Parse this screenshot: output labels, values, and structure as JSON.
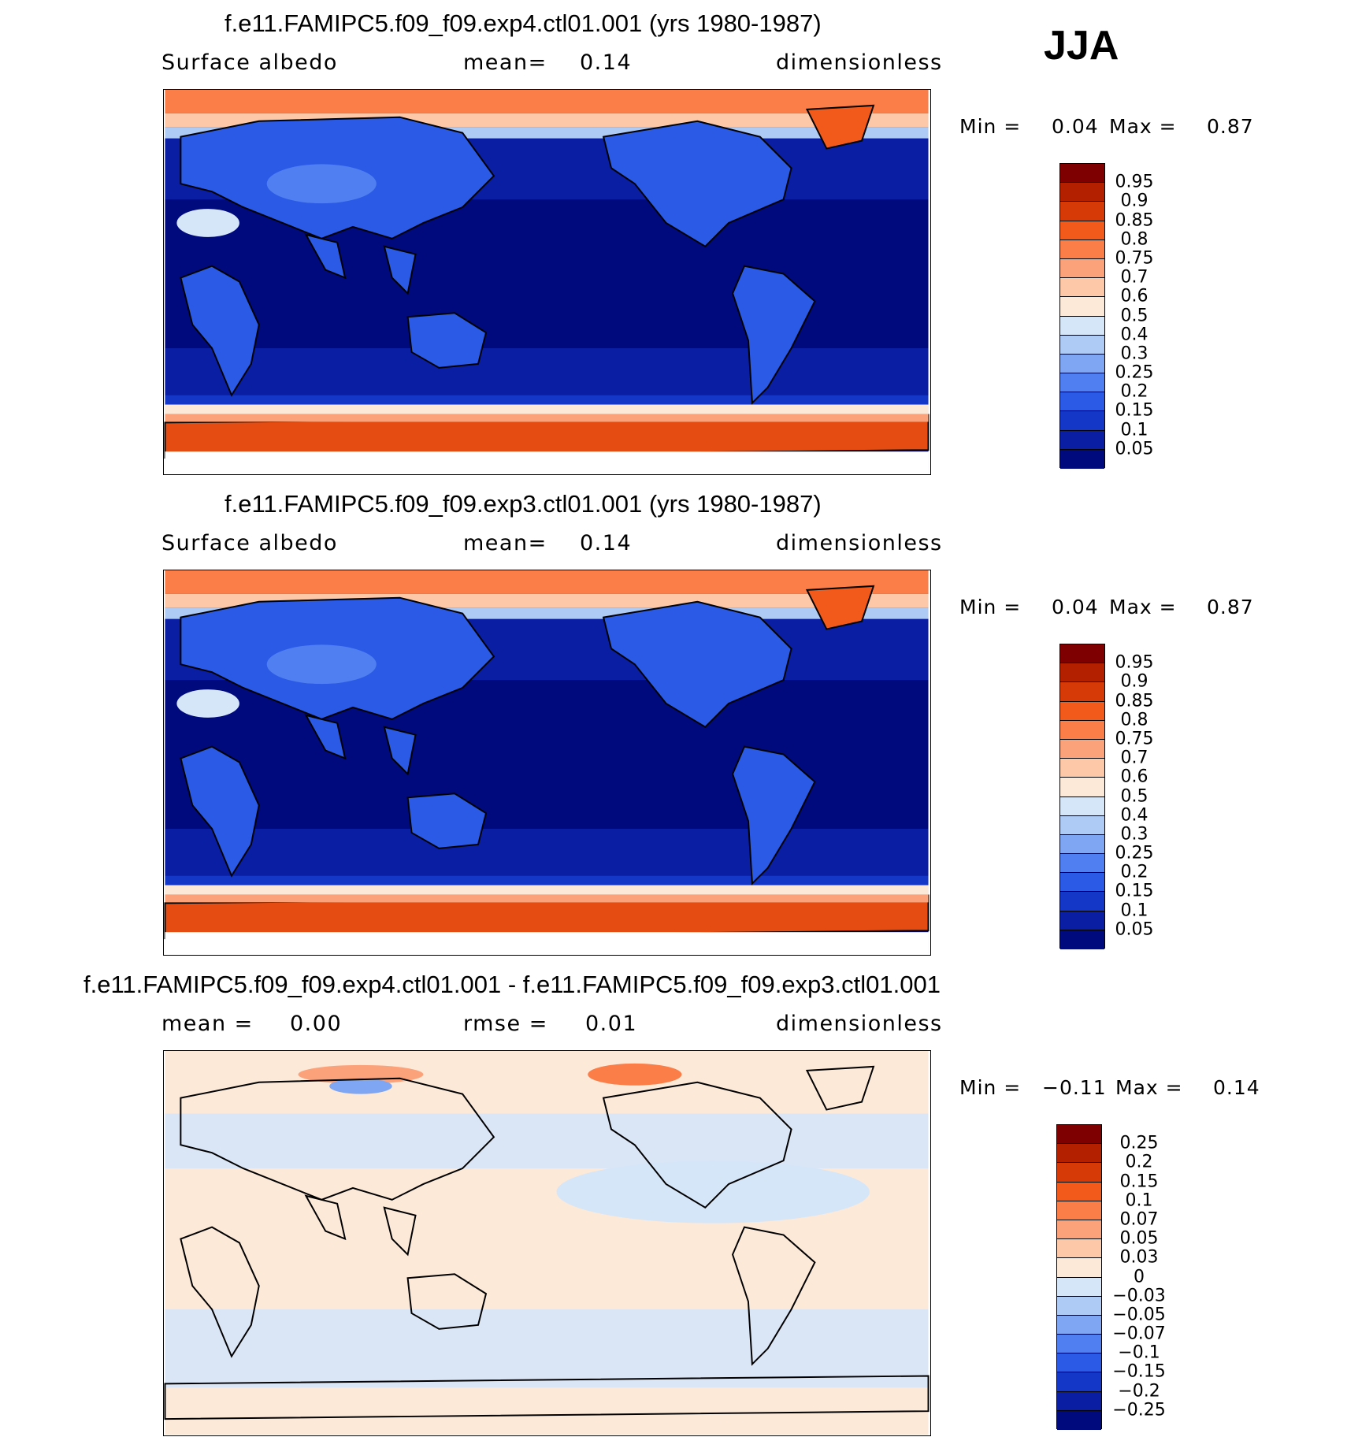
{
  "season": "JJA",
  "panels": [
    {
      "title": "f.e11.FAMIPC5.f09_f09.exp4.ctl01.001 (yrs 1980-1987)",
      "variable": "Surface albedo",
      "stat1": "mean=",
      "stat1_value": "0.14",
      "units": "dimensionless",
      "min_label": "Min =",
      "min_value": "0.04",
      "max_label": "Max =",
      "max_value": "0.87",
      "kind": "field"
    },
    {
      "title": "f.e11.FAMIPC5.f09_f09.exp3.ctl01.001 (yrs 1980-1987)",
      "variable": "Surface albedo",
      "stat1": "mean=",
      "stat1_value": "0.14",
      "units": "dimensionless",
      "min_label": "Min =",
      "min_value": "0.04",
      "max_label": "Max =",
      "max_value": "0.87",
      "kind": "field"
    },
    {
      "title": "f.e11.FAMIPC5.f09_f09.exp4.ctl01.001 - f.e11.FAMIPC5.f09_f09.exp3.ctl01.001",
      "stat1": "mean =",
      "stat1_value": "0.00",
      "stat2": "rmse =",
      "stat2_value": "0.01",
      "units": "dimensionless",
      "min_label": "Min =",
      "min_value": "−0.11",
      "max_label": "Max =",
      "max_value": "0.14",
      "kind": "diff"
    }
  ],
  "colorbars": {
    "field": {
      "labels": [
        "0.95",
        "0.9",
        "0.85",
        "0.8",
        "0.75",
        "0.7",
        "0.6",
        "0.5",
        "0.4",
        "0.3",
        "0.25",
        "0.2",
        "0.15",
        "0.1",
        "0.05"
      ],
      "colors": [
        "#7f0000",
        "#b22000",
        "#d63a06",
        "#f25a1c",
        "#fb7d48",
        "#fca27a",
        "#fdc8a8",
        "#fde9d8",
        "#d6e6f9",
        "#aecbf6",
        "#7ea6f2",
        "#4f7ff0",
        "#2a5ae6",
        "#1437c8",
        "#0a1ea3",
        "#000a7c"
      ]
    },
    "diff": {
      "labels": [
        "0.25",
        "0.2",
        "0.15",
        "0.1",
        "0.07",
        "0.05",
        "0.03",
        "0",
        "−0.03",
        "−0.05",
        "−0.07",
        "−0.1",
        "−0.15",
        "−0.2",
        "−0.25"
      ],
      "colors": [
        "#7f0000",
        "#b22000",
        "#d63a06",
        "#f25a1c",
        "#fb7d48",
        "#fca27a",
        "#fdc8a8",
        "#fde9d8",
        "#d6e6f9",
        "#aecbf6",
        "#7ea6f2",
        "#4f7ff0",
        "#2a5ae6",
        "#1437c8",
        "#0a1ea3",
        "#000a7c"
      ]
    }
  }
}
